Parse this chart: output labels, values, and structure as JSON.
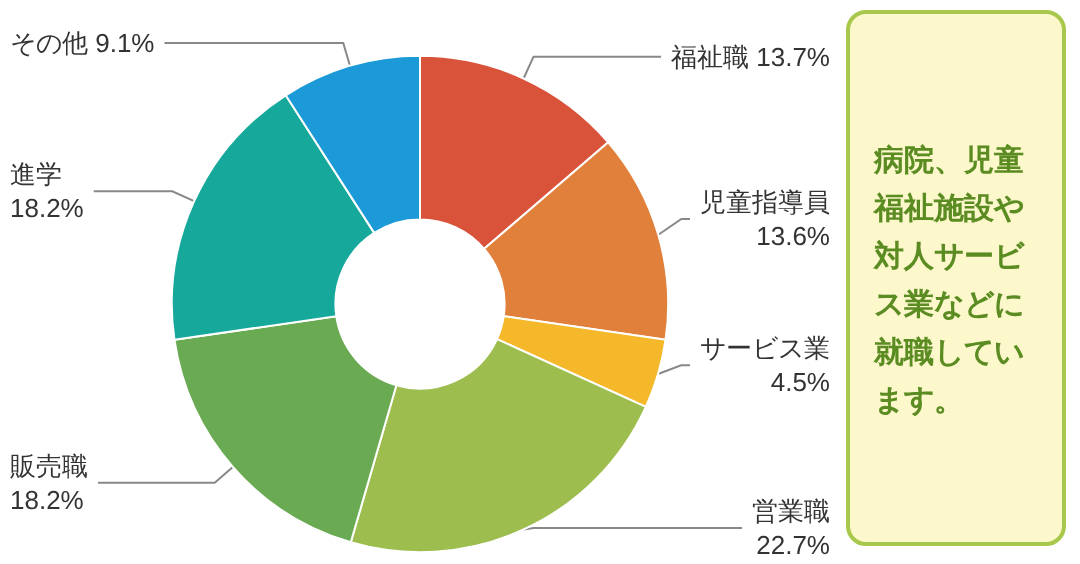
{
  "chart_data": {
    "type": "donut",
    "categories": [
      "福祉職",
      "児童指導員",
      "サービス業",
      "営業職",
      "販売職",
      "進学",
      "その他"
    ],
    "values": [
      13.7,
      13.6,
      4.5,
      22.7,
      18.2,
      18.2,
      9.1
    ],
    "value_labels": [
      "13.7%",
      "13.6%",
      "4.5%",
      "22.7%",
      "18.2%",
      "18.2%",
      "9.1%"
    ],
    "colors": [
      "#d9533a",
      "#e0803b",
      "#f5b82a",
      "#9dbd4f",
      "#6aaa52",
      "#16a99b",
      "#1b9ad7"
    ],
    "legend": false,
    "annotations": [
      "病院、児童福祉施設や対人サービス業などに就職しています。"
    ]
  }
}
